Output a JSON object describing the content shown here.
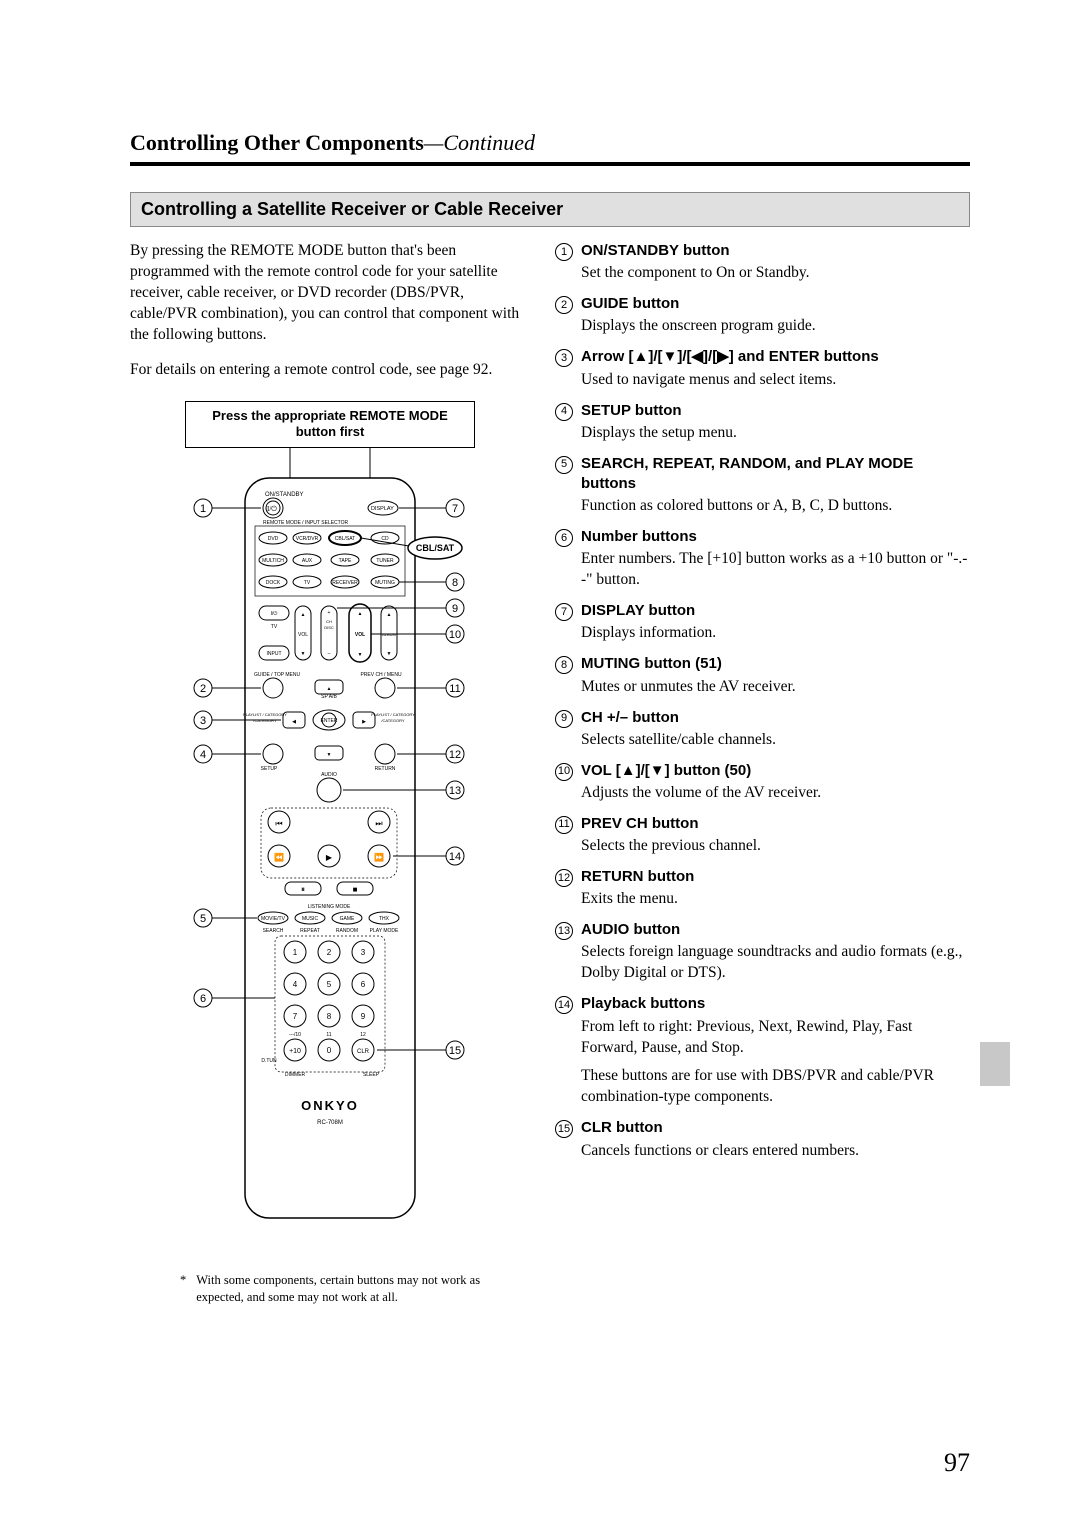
{
  "header": {
    "title": "Controlling Other Components",
    "continued": "—Continued"
  },
  "section_heading": "Controlling a Satellite Receiver or Cable Receiver",
  "intro": {
    "p1": "By pressing the REMOTE MODE button that's been programmed with the remote control code for your satellite receiver, cable receiver, or DVD recorder (DBS/PVR, cable/PVR combination), you can control that component with the following buttons.",
    "p2": "For details on entering a remote control code, see page 92."
  },
  "remote": {
    "header": "Press the appropriate REMOTE MODE button first",
    "highlight": "CBL/SAT",
    "brand": "ONKYO",
    "model": "RC-708M",
    "top_labels": {
      "on_standby": "ON/STANDBY",
      "display": "DISPLAY",
      "mode_row": "REMOTE MODE / INPUT SELECTOR"
    },
    "mode_buttons": {
      "r1": [
        "DVD",
        "VCR/DVR",
        "CBL/SAT",
        "CD"
      ],
      "r2": [
        "MULTICH",
        "AUX",
        "TAPE",
        "TUNER"
      ],
      "r3": [
        "DOCK",
        "TV",
        "RECEIVER",
        "MUTING"
      ]
    },
    "tv_block": {
      "power": "TV",
      "input": "INPUT",
      "vol": "VOL",
      "ch": "CH",
      "vol2": "VOL",
      "disc": "DISC",
      "album": "ALBUM"
    },
    "nav": {
      "guide": "GUIDE / TOP MENU",
      "prev_ch": "PREV CH / MENU",
      "sp": "SP A/B",
      "enter": "ENTER",
      "pl_left": "PLAYLIST / CATEGORY",
      "pl_right": "PLAYLIST / CATEGORY",
      "setup": "SETUP",
      "return": "RETURN",
      "audio": "AUDIO"
    },
    "mode_row2": "LISTENING MODE",
    "mode2": [
      "MOVIE/TV",
      "MUSIC",
      "GAME",
      "THX"
    ],
    "mode_row3": [
      "SEARCH",
      "REPEAT",
      "RANDOM",
      "PLAY MODE"
    ],
    "numpad": [
      "1",
      "2",
      "3",
      "4",
      "5",
      "6",
      "7",
      "8",
      "9",
      "+10",
      "0",
      "CLR"
    ],
    "numpad_sub": {
      "plus10": "---/10",
      "zero": "11",
      "clr": "12"
    },
    "bottom": {
      "dtr": "D.TUN",
      "dimmer": "DIMMER",
      "sleep": "SLEEP"
    }
  },
  "callouts": {
    "left": [
      "1",
      "2",
      "3",
      "4",
      "5",
      "6"
    ],
    "right": [
      "7",
      "8",
      "9",
      "10",
      "11",
      "12",
      "13",
      "14",
      "15"
    ]
  },
  "defs": [
    {
      "n": "1",
      "title": "ON/STANDBY button",
      "desc": "Set the component to On or Standby."
    },
    {
      "n": "2",
      "title": "GUIDE button",
      "desc": "Displays the onscreen program guide."
    },
    {
      "n": "3",
      "title": "Arrow [▲]/[▼]/[◀]/[▶] and ENTER buttons",
      "desc": "Used to navigate menus and select items."
    },
    {
      "n": "4",
      "title": "SETUP button",
      "desc": "Displays the setup menu."
    },
    {
      "n": "5",
      "title": "SEARCH, REPEAT, RANDOM, and PLAY MODE buttons",
      "desc": "Function as colored buttons or A, B, C, D buttons."
    },
    {
      "n": "6",
      "title": "Number buttons",
      "desc": "Enter numbers. The [+10] button works as a +10 button or \"-.--\" button."
    },
    {
      "n": "7",
      "title": "DISPLAY button",
      "desc": "Displays information."
    },
    {
      "n": "8",
      "title": "MUTING button (51)",
      "desc": "Mutes or unmutes the AV receiver."
    },
    {
      "n": "9",
      "title": "CH +/– button",
      "desc": "Selects satellite/cable channels."
    },
    {
      "n": "10",
      "title": "VOL [▲]/[▼] button (50)",
      "desc": "Adjusts the volume of the AV receiver."
    },
    {
      "n": "11",
      "title": "PREV CH button",
      "desc": "Selects the previous channel."
    },
    {
      "n": "12",
      "title": "RETURN button",
      "desc": "Exits the menu."
    },
    {
      "n": "13",
      "title": "AUDIO button",
      "desc": "Selects foreign language soundtracks and audio formats (e.g., Dolby Digital or DTS)."
    },
    {
      "n": "14",
      "title": "Playback buttons",
      "desc": "From left to right: Previous, Next, Rewind, Play, Fast Forward, Pause, and Stop.",
      "desc2": "These buttons are for use with DBS/PVR and cable/PVR combination-type components."
    },
    {
      "n": "15",
      "title": "CLR button",
      "desc": "Cancels functions or clears entered numbers."
    }
  ],
  "footnote": "With some components, certain buttons may not work as expected, and some may not work at all.",
  "page_number": "97"
}
